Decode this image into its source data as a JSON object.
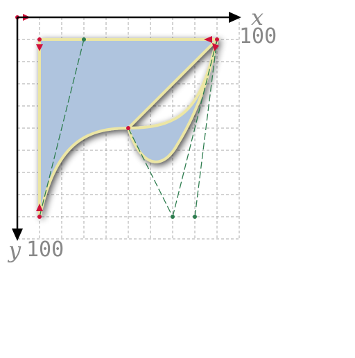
{
  "axes": {
    "x_label": "x",
    "x_max": "100",
    "y_label": "y",
    "y_max": "100"
  }
}
